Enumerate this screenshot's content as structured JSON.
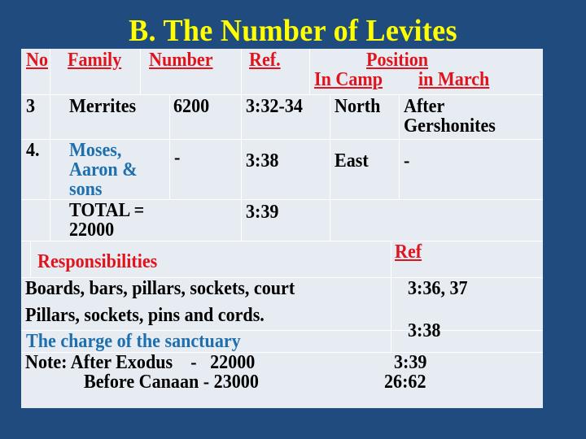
{
  "title": "B. The Number of Levites",
  "table": {
    "headers": {
      "no": "No",
      "family": "Family",
      "number": "Number",
      "ref": "Ref.",
      "position": "Position",
      "in_camp": "In Camp",
      "in_march": "in March"
    },
    "rows": [
      {
        "no": "3",
        "family": "Merrites",
        "number": "6200",
        "ref": "3:32-34",
        "camp": "North",
        "march_1": "After",
        "march_2": "Gershonites"
      },
      {
        "no": "4.",
        "family_1": "Moses,",
        "family_2": "Aaron &",
        "family_3": "sons",
        "number": "-",
        "ref": "3:38",
        "camp": "East",
        "march": "-"
      },
      {
        "total_1": "TOTAL =",
        "total_2": "22000",
        "ref": "3:39"
      }
    ]
  },
  "responsibilities": {
    "header": "Responsibilities",
    "ref_header": "Ref",
    "items": [
      {
        "text": "Boards, bars, pillars, sockets, court",
        "ref": "3:36, 37"
      },
      {
        "text": "Pillars, sockets, pins and cords.",
        "ref": "3:38"
      },
      {
        "text": "The charge of the sanctuary"
      }
    ],
    "note_1": "Note: After Exodus    -   22000",
    "note_2": "Before Canaan  -  23000",
    "note_ref_1": "3:39",
    "note_ref_2": "26:62"
  },
  "colors": {
    "background": "#1f4b7e",
    "title": "#ffff00",
    "header": "#e0141c",
    "highlight": "#1d6fae"
  }
}
